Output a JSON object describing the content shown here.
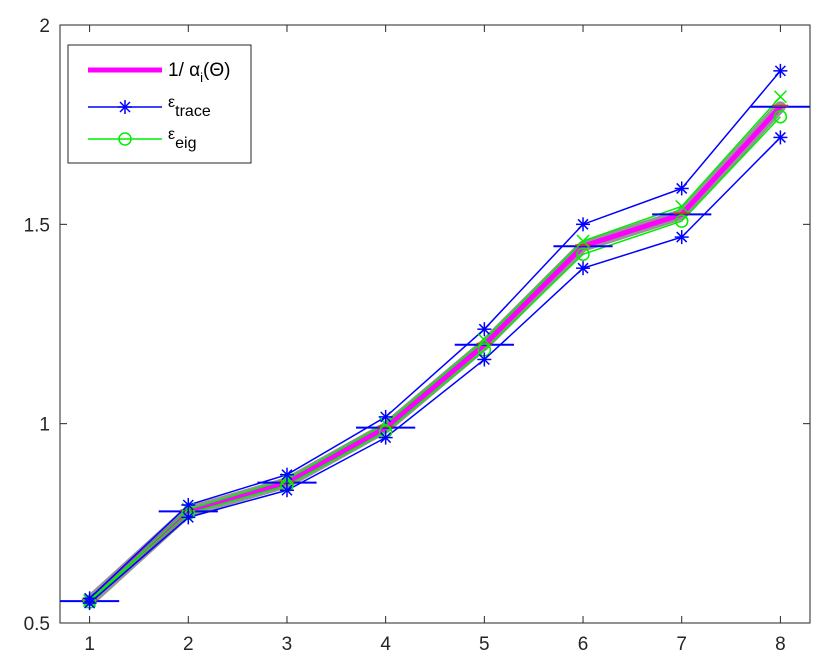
{
  "chart_data": {
    "type": "line",
    "x": [
      1,
      2,
      3,
      4,
      5,
      6,
      7,
      8
    ],
    "xlim": [
      0.7,
      8.3
    ],
    "ylim": [
      0.5,
      2
    ],
    "x_ticks": [
      "1",
      "2",
      "3",
      "4",
      "5",
      "6",
      "7",
      "8"
    ],
    "y_ticks": [
      "0.5",
      "1",
      "1.5",
      "2"
    ],
    "legend_position": "top-left",
    "grid": false,
    "series": [
      {
        "name": "1/ αi(Θ)",
        "name_main": "1/ α",
        "name_sub": "i",
        "name_tail": "(Θ)",
        "color": "#ff00ff",
        "values": [
          0.555,
          0.78,
          0.852,
          0.99,
          1.198,
          1.445,
          1.525,
          1.795
        ]
      },
      {
        "name": "εtrace",
        "name_main": "ε",
        "name_sub": "trace",
        "color": "#0000ff",
        "marker": "asterisk",
        "upper": [
          0.562,
          0.796,
          0.872,
          1.017,
          1.237,
          1.5,
          1.59,
          1.885
        ],
        "lower": [
          0.55,
          0.765,
          0.833,
          0.965,
          1.161,
          1.39,
          1.468,
          1.718
        ],
        "error_halfwidth": 0.3
      },
      {
        "name": "εeig",
        "name_main": "ε",
        "name_sub": "eig",
        "color": "#00ee00",
        "marker": "circle",
        "upper": [
          0.556,
          0.785,
          0.86,
          1.0,
          1.21,
          1.458,
          1.545,
          1.82
        ],
        "lower": [
          0.553,
          0.775,
          0.845,
          0.98,
          1.185,
          1.425,
          1.508,
          1.77
        ]
      }
    ]
  }
}
